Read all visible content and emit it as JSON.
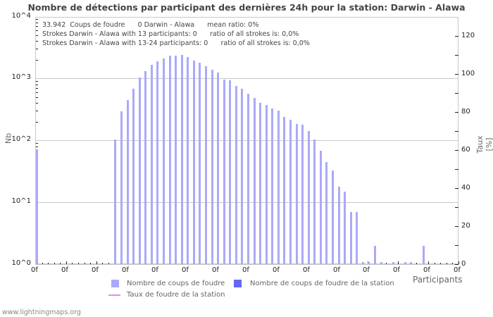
{
  "chart_data": {
    "type": "bar",
    "title": "Nombre de détections par participant des dernières 24h pour la station: Darwin - Alawa",
    "xlabel": "Participants",
    "ylabel": "Nb",
    "y2label": "Taux [%]",
    "yscale": "log",
    "ylim": [
      1,
      10000
    ],
    "y2lim": [
      0,
      130
    ],
    "y_ticks": [
      "10^0",
      "10^1",
      "10^2",
      "10^3",
      "10^4"
    ],
    "y2_ticks": [
      "0",
      "20",
      "40",
      "60",
      "80",
      "100",
      "120"
    ],
    "x_tick_labels": [
      "0f",
      "0f",
      "0f",
      "0f",
      "0f",
      "0f",
      "0f",
      "0f",
      "0f",
      "0f",
      "0f",
      "0f",
      "0f",
      "0f",
      "0f"
    ],
    "grid": true,
    "legend_position": "bottom",
    "num_participants": 70,
    "series": [
      {
        "name": "Nombre de coups de foudre",
        "color": "#aaaaf8",
        "values": [
          72,
          0,
          0,
          0,
          0,
          0,
          0,
          0,
          0,
          0,
          0,
          0,
          0,
          104,
          297,
          452,
          688,
          1047,
          1320,
          1680,
          1913,
          2128,
          2360,
          2360,
          2425,
          2245,
          1965,
          1815,
          1590,
          1395,
          1260,
          970,
          945,
          765,
          690,
          575,
          490,
          410,
          378,
          330,
          305,
          240,
          217,
          185,
          180,
          142,
          104,
          68,
          45,
          33,
          18,
          15,
          7,
          7,
          1,
          1,
          2,
          1,
          0,
          1,
          0,
          1,
          1,
          0,
          2,
          0,
          0,
          0,
          0,
          0
        ]
      },
      {
        "name": "Nombre de coups de foudre de la station",
        "color": "#6666f8",
        "values": []
      },
      {
        "name": "Taux de foudre de la station",
        "color": "#e58de5",
        "type": "line",
        "values": []
      }
    ],
    "annotations": [
      "33.942  Coups de foudre      0 Darwin - Alawa      mean ratio: 0%",
      "Strokes Darwin - Alawa with 13 participants: 0      ratio of all strokes is: 0,0%",
      "Strokes Darwin - Alawa with 13-24 participants: 0      ratio of all strokes is: 0,0%"
    ]
  },
  "title": "Nombre de détections par participant des dernières 24h pour la station: Darwin - Alawa",
  "info_lines": [
    "33.942  Coups de foudre      0 Darwin - Alawa      mean ratio: 0%",
    "Strokes Darwin - Alawa with 13 participants: 0      ratio of all strokes is: 0,0%",
    "Strokes Darwin - Alawa with 13-24 participants: 0      ratio of all strokes is: 0,0%"
  ],
  "axes": {
    "y_title": "Nb",
    "y2_title": "Taux [%]",
    "x_title": "Participants",
    "y_ticks": [
      {
        "base": "10^0",
        "y": 375
      },
      {
        "base": "10^1",
        "y": 287
      },
      {
        "base": "10^2",
        "y": 199
      },
      {
        "base": "10^3",
        "y": 111
      },
      {
        "base": "10^4",
        "y": 24
      }
    ],
    "y2_ticks": [
      "0",
      "20",
      "40",
      "60",
      "80",
      "100",
      "120"
    ],
    "x_tick_label": "0f"
  },
  "legend": {
    "items": [
      {
        "label": "Nombre de coups de foudre",
        "color": "#aaaaf8"
      },
      {
        "label": "Nombre de coups de foudre de la station",
        "color": "#6666f8"
      },
      {
        "label": "Taux de foudre de la station",
        "color": "#e58de5"
      }
    ]
  },
  "footer": "www.lightningmaps.org"
}
